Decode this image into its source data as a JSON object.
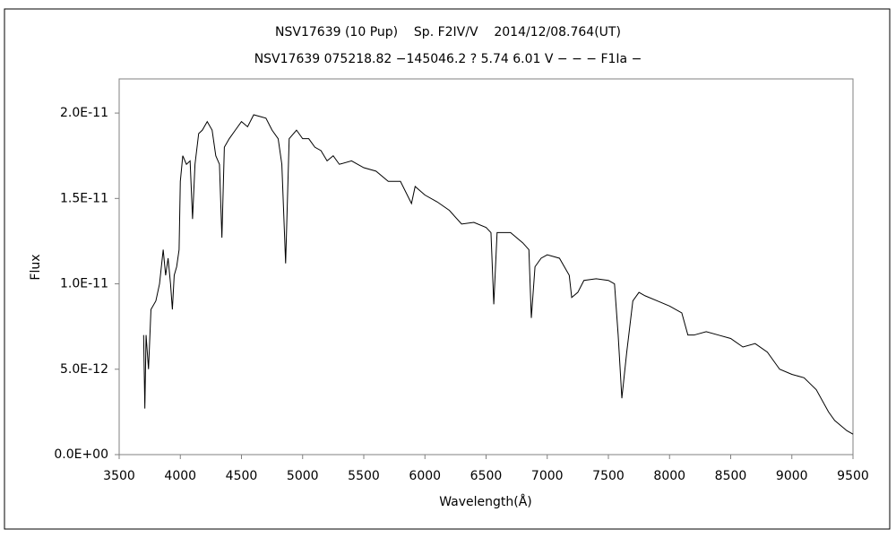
{
  "chart_data": {
    "type": "line",
    "title": "NSV17639 (10 Pup)    Sp. F2IV/V    2014/12/08.764(UT)",
    "subtitle": "NSV17639 075218.82 −145046.2 ? 5.74 6.01 V − − − F1Ia −",
    "x_label": "Wavelength(Å)",
    "y_label": "Flux",
    "xlim": [
      3500,
      9500
    ],
    "xticks": [
      3500,
      4000,
      4500,
      5000,
      5500,
      6000,
      6500,
      7000,
      7500,
      8000,
      8500,
      9000,
      9500
    ],
    "ylim": [
      0,
      2.2e-11
    ],
    "yticks": [
      {
        "value": 0,
        "label": "0.0E+00"
      },
      {
        "value": 5e-12,
        "label": "5.0E-12"
      },
      {
        "value": 1e-11,
        "label": "1.0E-11"
      },
      {
        "value": 1.5e-11,
        "label": "1.5E-11"
      },
      {
        "value": 2e-11,
        "label": "2.0E-11"
      }
    ],
    "grid": false,
    "series": [
      {
        "name": "Flux",
        "color": "#000000",
        "x": [
          3700,
          3710,
          3720,
          3740,
          3760,
          3800,
          3830,
          3860,
          3880,
          3900,
          3920,
          3935,
          3950,
          3970,
          3990,
          4000,
          4020,
          4050,
          4080,
          4100,
          4120,
          4150,
          4180,
          4220,
          4260,
          4290,
          4320,
          4340,
          4360,
          4400,
          4450,
          4500,
          4550,
          4600,
          4650,
          4700,
          4750,
          4800,
          4830,
          4861,
          4890,
          4950,
          5000,
          5050,
          5100,
          5150,
          5200,
          5250,
          5300,
          5400,
          5500,
          5600,
          5700,
          5800,
          5890,
          5920,
          6000,
          6100,
          6200,
          6300,
          6400,
          6500,
          6540,
          6563,
          6590,
          6700,
          6800,
          6850,
          6870,
          6900,
          6950,
          7000,
          7100,
          7180,
          7200,
          7250,
          7300,
          7400,
          7500,
          7550,
          7580,
          7610,
          7650,
          7700,
          7750,
          7800,
          7900,
          8000,
          8100,
          8150,
          8200,
          8300,
          8400,
          8500,
          8600,
          8700,
          8800,
          8850,
          8900,
          9000,
          9100,
          9200,
          9300,
          9350,
          9400,
          9450,
          9500
        ],
        "values": [
          7e-12,
          2.7e-12,
          7e-12,
          5e-12,
          8.5e-12,
          9e-12,
          1e-11,
          1.2e-11,
          1.05e-11,
          1.15e-11,
          1e-11,
          8.5e-12,
          1.05e-11,
          1.1e-11,
          1.2e-11,
          1.6e-11,
          1.75e-11,
          1.7e-11,
          1.72e-11,
          1.38e-11,
          1.7e-11,
          1.88e-11,
          1.9e-11,
          1.95e-11,
          1.9e-11,
          1.75e-11,
          1.7e-11,
          1.27e-11,
          1.8e-11,
          1.85e-11,
          1.9e-11,
          1.95e-11,
          1.92e-11,
          1.99e-11,
          1.98e-11,
          1.97e-11,
          1.9e-11,
          1.85e-11,
          1.7e-11,
          1.12e-11,
          1.85e-11,
          1.9e-11,
          1.85e-11,
          1.85e-11,
          1.8e-11,
          1.78e-11,
          1.72e-11,
          1.75e-11,
          1.7e-11,
          1.72e-11,
          1.68e-11,
          1.66e-11,
          1.6e-11,
          1.6e-11,
          1.47e-11,
          1.57e-11,
          1.52e-11,
          1.48e-11,
          1.43e-11,
          1.35e-11,
          1.36e-11,
          1.33e-11,
          1.3e-11,
          8.8e-12,
          1.3e-11,
          1.3e-11,
          1.24e-11,
          1.2e-11,
          8e-12,
          1.1e-11,
          1.15e-11,
          1.17e-11,
          1.15e-11,
          1.05e-11,
          9.2e-12,
          9.5e-12,
          1.02e-11,
          1.03e-11,
          1.02e-11,
          1e-11,
          7e-12,
          3.3e-12,
          6e-12,
          9e-12,
          9.5e-12,
          9.3e-12,
          9e-12,
          8.7e-12,
          8.3e-12,
          7e-12,
          7e-12,
          7.2e-12,
          7e-12,
          6.8e-12,
          6.3e-12,
          6.5e-12,
          6e-12,
          5.5e-12,
          5e-12,
          4.7e-12,
          4.5e-12,
          3.8e-12,
          2.5e-12,
          2e-12,
          1.7e-12,
          1.4e-12,
          1.2e-12
        ]
      }
    ]
  }
}
